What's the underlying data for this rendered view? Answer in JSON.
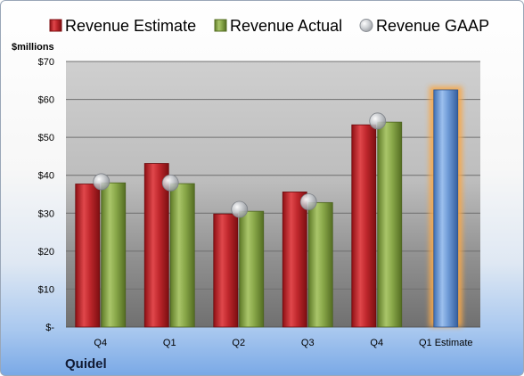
{
  "company": "Quidel",
  "chart_data": {
    "type": "bar",
    "title": "",
    "ylabel": "$millions",
    "ylim": [
      0,
      70
    ],
    "yticks": [
      {
        "value": 0,
        "label": "$-"
      },
      {
        "value": 10,
        "label": "$10"
      },
      {
        "value": 20,
        "label": "$20"
      },
      {
        "value": 30,
        "label": "$30"
      },
      {
        "value": 40,
        "label": "$40"
      },
      {
        "value": 50,
        "label": "$50"
      },
      {
        "value": 60,
        "label": "$60"
      },
      {
        "value": 70,
        "label": "$70"
      }
    ],
    "categories": [
      "Q4",
      "Q1",
      "Q2",
      "Q3",
      "Q4",
      "Q1 Estimate"
    ],
    "series": [
      {
        "name": "Revenue Estimate",
        "type": "bar",
        "color": "#c0282d",
        "values": [
          37.7,
          43.1,
          29.8,
          35.6,
          53.3,
          null
        ]
      },
      {
        "name": "Revenue Actual",
        "type": "bar",
        "color": "#8aa94a",
        "values": [
          38.0,
          37.8,
          30.5,
          32.8,
          54.0,
          null
        ]
      },
      {
        "name": "Revenue GAAP",
        "type": "marker",
        "color": "#b8bcc2",
        "values": [
          38.3,
          38.0,
          31.0,
          33.0,
          54.3,
          null
        ]
      },
      {
        "name": "Q1 Estimate",
        "type": "highlight-bar",
        "color": "#6e9ad6",
        "values": [
          null,
          null,
          null,
          null,
          null,
          62.5
        ]
      }
    ],
    "grid": true,
    "legend_position": "top"
  }
}
